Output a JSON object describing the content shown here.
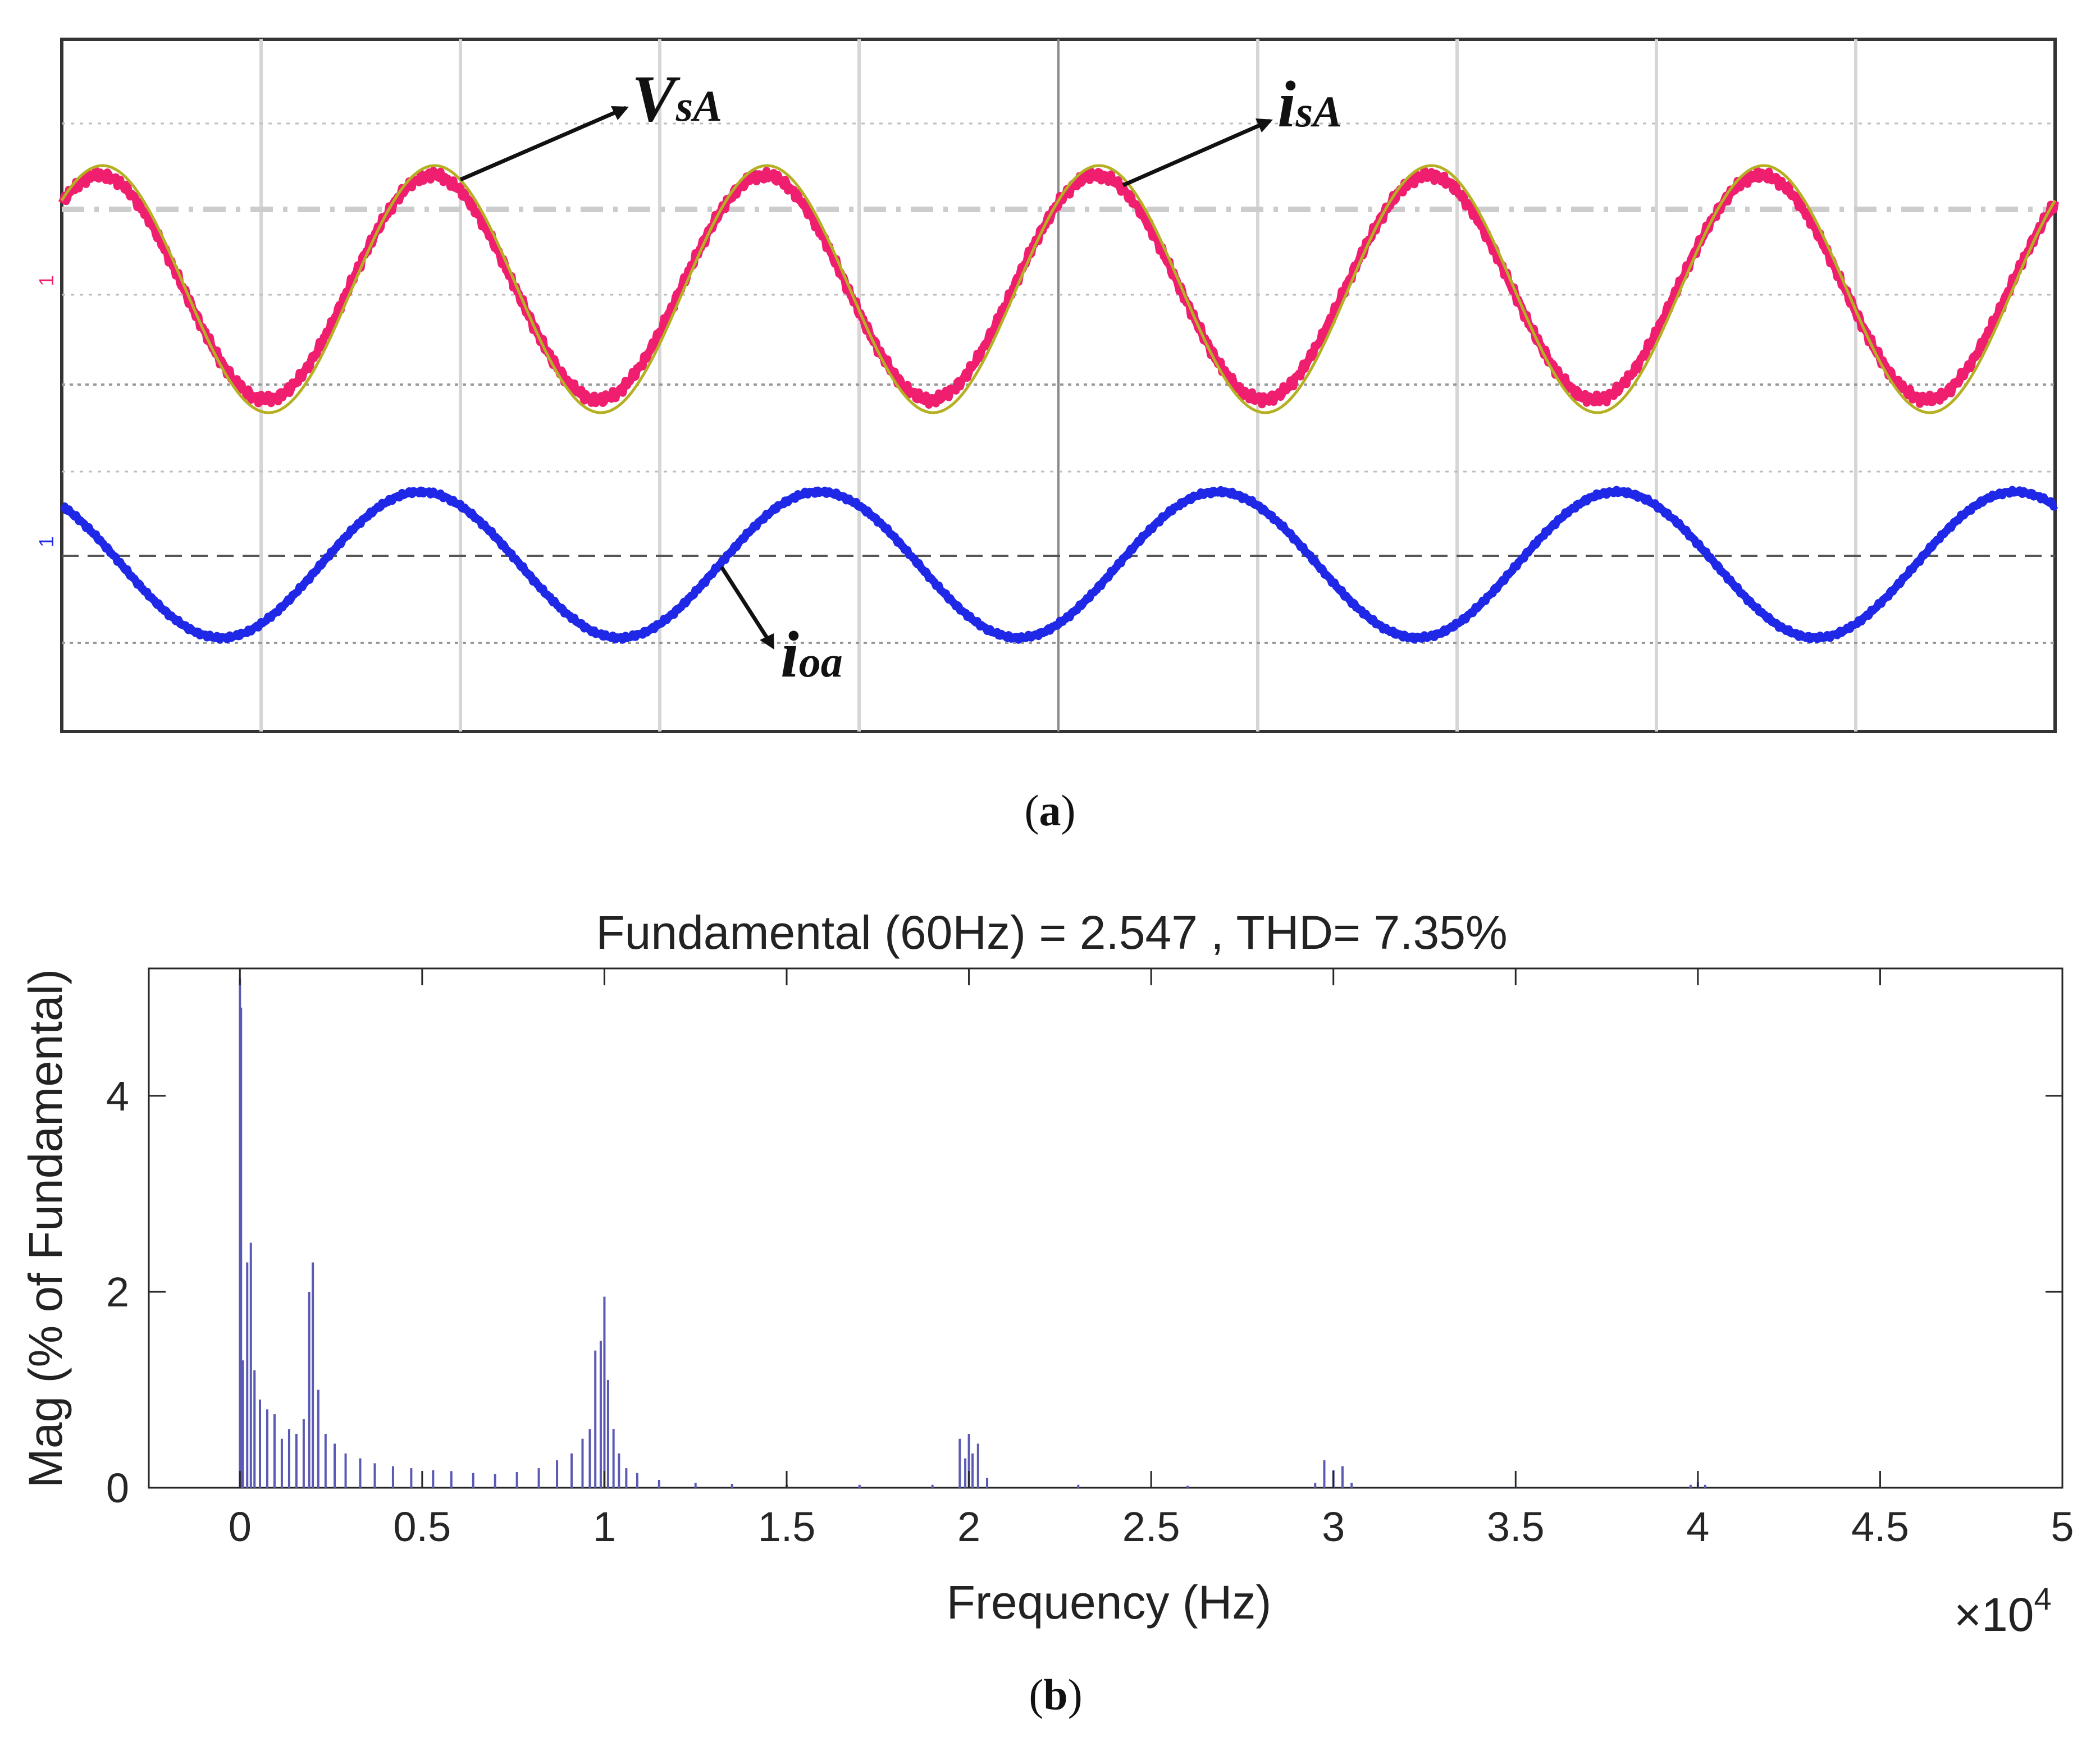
{
  "chart_data": [
    {
      "panel": "(a)",
      "panel_letter": "a",
      "type": "line",
      "title": "",
      "xlabel": "",
      "ylabel": "",
      "xlim": [
        0,
        10
      ],
      "series": [
        {
          "name": "VsA",
          "label_main": "V",
          "label_sub": "sA",
          "color": "#b5b021",
          "cycles": 6,
          "amplitude": 1.0
        },
        {
          "name": "isA",
          "label_main": "i",
          "label_sub": "sA",
          "color": "#f01e6e",
          "cycles": 6,
          "amplitude": 0.93
        },
        {
          "name": "ioa",
          "label_main": "i",
          "label_sub": "oa",
          "color": "#1e28e6",
          "cycles": 5,
          "amplitude": 1.0
        }
      ],
      "channel_markers": {
        "upper": "1",
        "lower": "1"
      }
    },
    {
      "panel": "(b)",
      "panel_letter": "b",
      "type": "bar",
      "title": "Fundamental (60Hz) = 2.547 , THD= 7.35%",
      "xlabel": "Frequency (Hz)",
      "ylabel": "Mag (% of Fundamental)",
      "xlim": [
        -0.25,
        5
      ],
      "ylim": [
        0,
        5.3
      ],
      "x_scale_label": "×10",
      "x_scale_exponent": "4",
      "xticks": [
        "0",
        "0.5",
        "1",
        "1.5",
        "2",
        "2.5",
        "3",
        "3.5",
        "4",
        "4.5",
        "5"
      ],
      "yticks": [
        "0",
        "2",
        "4"
      ],
      "bar_color": "#5a5ab4",
      "x_units": "10^4 Hz",
      "spectrum": [
        {
          "x": 0.0,
          "y": 5.2
        },
        {
          "x": 0.003,
          "y": 4.9
        },
        {
          "x": 0.008,
          "y": 1.3
        },
        {
          "x": 0.02,
          "y": 2.3
        },
        {
          "x": 0.03,
          "y": 2.5
        },
        {
          "x": 0.04,
          "y": 1.2
        },
        {
          "x": 0.055,
          "y": 0.9
        },
        {
          "x": 0.075,
          "y": 0.8
        },
        {
          "x": 0.095,
          "y": 0.75
        },
        {
          "x": 0.115,
          "y": 0.5
        },
        {
          "x": 0.135,
          "y": 0.6
        },
        {
          "x": 0.155,
          "y": 0.55
        },
        {
          "x": 0.175,
          "y": 0.7
        },
        {
          "x": 0.19,
          "y": 2.0
        },
        {
          "x": 0.2,
          "y": 2.3
        },
        {
          "x": 0.215,
          "y": 1.0
        },
        {
          "x": 0.235,
          "y": 0.55
        },
        {
          "x": 0.26,
          "y": 0.45
        },
        {
          "x": 0.29,
          "y": 0.35
        },
        {
          "x": 0.33,
          "y": 0.3
        },
        {
          "x": 0.37,
          "y": 0.25
        },
        {
          "x": 0.42,
          "y": 0.22
        },
        {
          "x": 0.47,
          "y": 0.2
        },
        {
          "x": 0.53,
          "y": 0.18
        },
        {
          "x": 0.58,
          "y": 0.17
        },
        {
          "x": 0.64,
          "y": 0.15
        },
        {
          "x": 0.7,
          "y": 0.14
        },
        {
          "x": 0.76,
          "y": 0.16
        },
        {
          "x": 0.82,
          "y": 0.2
        },
        {
          "x": 0.87,
          "y": 0.28
        },
        {
          "x": 0.91,
          "y": 0.35
        },
        {
          "x": 0.94,
          "y": 0.5
        },
        {
          "x": 0.96,
          "y": 0.6
        },
        {
          "x": 0.975,
          "y": 1.4
        },
        {
          "x": 0.99,
          "y": 1.5
        },
        {
          "x": 1.0,
          "y": 1.95
        },
        {
          "x": 1.01,
          "y": 1.1
        },
        {
          "x": 1.025,
          "y": 0.6
        },
        {
          "x": 1.04,
          "y": 0.35
        },
        {
          "x": 1.06,
          "y": 0.2
        },
        {
          "x": 1.09,
          "y": 0.15
        },
        {
          "x": 1.15,
          "y": 0.08
        },
        {
          "x": 1.25,
          "y": 0.05
        },
        {
          "x": 1.35,
          "y": 0.04
        },
        {
          "x": 1.5,
          "y": 0.03
        },
        {
          "x": 1.7,
          "y": 0.03
        },
        {
          "x": 1.9,
          "y": 0.03
        },
        {
          "x": 1.975,
          "y": 0.5
        },
        {
          "x": 1.99,
          "y": 0.3
        },
        {
          "x": 2.0,
          "y": 0.55
        },
        {
          "x": 2.01,
          "y": 0.35
        },
        {
          "x": 2.025,
          "y": 0.45
        },
        {
          "x": 2.05,
          "y": 0.1
        },
        {
          "x": 2.3,
          "y": 0.03
        },
        {
          "x": 2.6,
          "y": 0.02
        },
        {
          "x": 2.95,
          "y": 0.05
        },
        {
          "x": 2.975,
          "y": 0.28
        },
        {
          "x": 3.0,
          "y": 0.18
        },
        {
          "x": 3.025,
          "y": 0.22
        },
        {
          "x": 3.05,
          "y": 0.05
        },
        {
          "x": 3.5,
          "y": 0.01
        },
        {
          "x": 3.98,
          "y": 0.03
        },
        {
          "x": 4.0,
          "y": 0.06
        },
        {
          "x": 4.02,
          "y": 0.03
        },
        {
          "x": 4.5,
          "y": 0.01
        }
      ]
    }
  ]
}
